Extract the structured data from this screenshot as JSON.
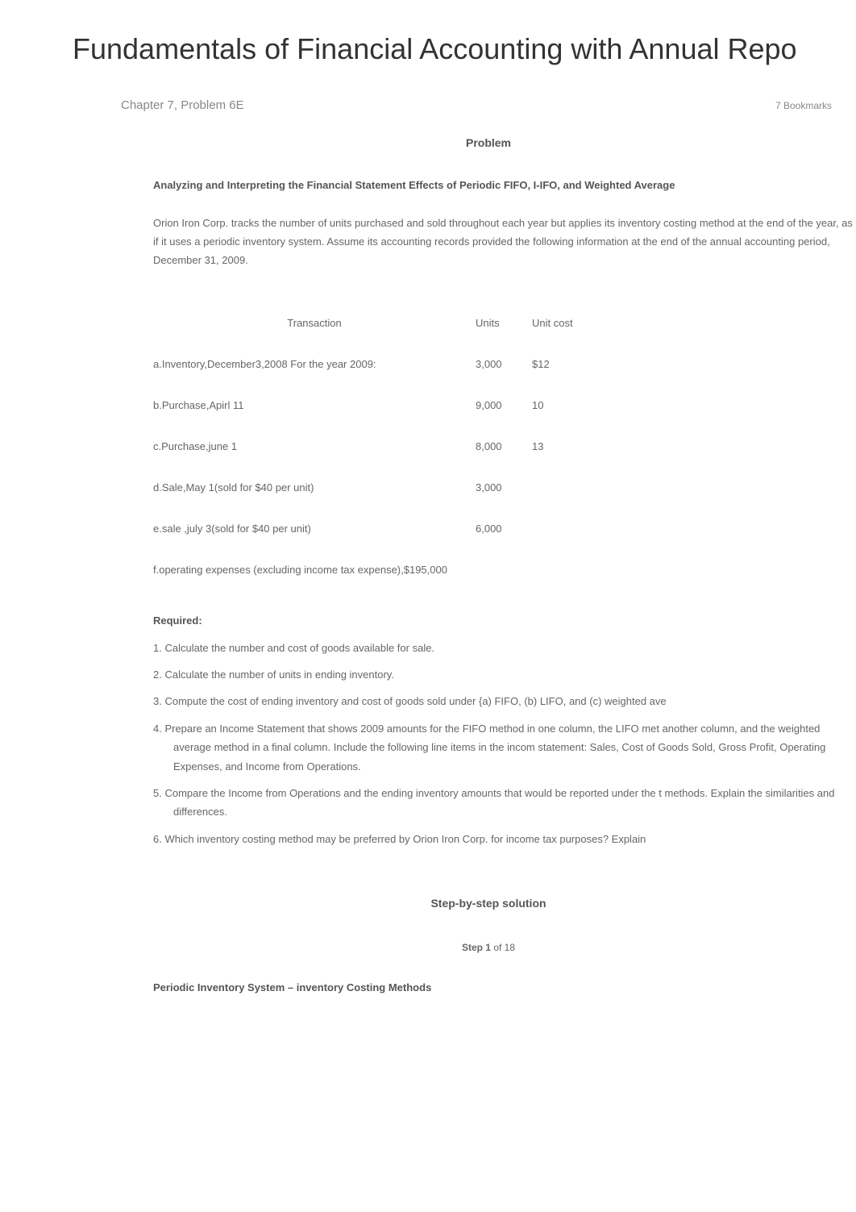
{
  "page": {
    "title": "Fundamentals of Financial Accounting with Annual Repo"
  },
  "header": {
    "chapter_label": "Chapter 7, Problem 6E",
    "bookmarks": "7 Bookmarks"
  },
  "problem": {
    "section_title": "Problem",
    "heading": "Analyzing and Interpreting the Financial Statement Effects of Periodic FIFO, I-IFO, and Weighted Average",
    "paragraph": "Orion Iron Corp. tracks the number of units purchased and sold throughout each year but applies its inventory costing method at the end of the year, as if it uses a periodic inventory system. Assume its accounting records provided the following information at the end of the annual accounting period, December 31, 2009."
  },
  "table": {
    "headers": {
      "transaction": "Transaction",
      "units": "Units",
      "unit_cost": "Unit cost"
    },
    "rows": [
      {
        "desc": "a.Inventory,December3,2008 For the year 2009:",
        "units": "3,000",
        "cost": "$12"
      },
      {
        "desc": "b.Purchase,Apirl 11",
        "units": "9,000",
        "cost": "10"
      },
      {
        "desc": "c.Purchase,june 1",
        "units": "8,000",
        "cost": "13"
      },
      {
        "desc": "d.Sale,May 1(sold for $40 per unit)",
        "units": "3,000",
        "cost": ""
      },
      {
        "desc": "e.sale ,july 3(sold for $40 per unit)",
        "units": "6,000",
        "cost": ""
      },
      {
        "desc": "f.operating expenses (excluding income tax expense),$195,000",
        "units": "",
        "cost": ""
      }
    ]
  },
  "required": {
    "heading": "Required:",
    "items": [
      "1.    Calculate the number and cost of goods available for sale.",
      "2.    Calculate the number of units in ending inventory.",
      "3.    Compute the cost of ending inventory and cost of goods sold under {a) FIFO, (b) LIFO, and (c) weighted ave",
      "4.    Prepare an Income Statement that shows 2009 amounts for the FIFO method in one column, the LIFO met another column, and the weighted average method in a final column. Include the following line items in the incom statement: Sales, Cost of Goods Sold, Gross Profit, Operating Expenses, and Income from Operations.",
      "5.    Compare the Income from Operations and the ending inventory amounts that would be reported under the t methods. Explain the similarities and differences.",
      "6.    Which inventory costing method may be preferred by Orion Iron Corp. for income tax purposes? Explain"
    ]
  },
  "solution": {
    "title": "Step-by-step solution",
    "step_prefix": "Step 1",
    "step_suffix": " of 18",
    "step_heading": "Periodic Inventory System – inventory Costing Methods"
  },
  "colors": {
    "body_text": "#666666",
    "heading_text": "#555555",
    "title_text": "#333333",
    "muted_text": "#888888",
    "background": "#ffffff"
  },
  "typography": {
    "title_fontsize": 36,
    "body_fontsize": 13,
    "section_title_fontsize": 14,
    "small_fontsize": 12,
    "line_height": 1.8
  }
}
